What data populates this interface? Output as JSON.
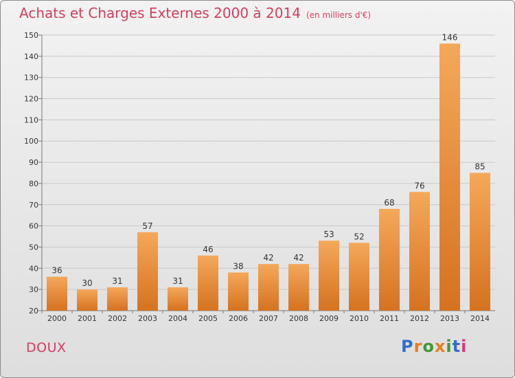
{
  "header": {
    "title": "Achats et Charges Externes 2000 à 2014",
    "unit": "(en milliers d'€)"
  },
  "footer": {
    "city": "DOUX",
    "logo_text": "Proxiti",
    "logo_colors": [
      "#2f6fc9",
      "#e87d1e",
      "#3d9b35",
      "#e87d1e",
      "#3d9b35",
      "#2f6fc9",
      "#d8357f"
    ]
  },
  "colors": {
    "title": "#d0405e",
    "bar_top": "#f5a85a",
    "bar_bottom": "#d5721f"
  },
  "chart_data": {
    "type": "bar",
    "title": "Achats et Charges Externes 2000 à 2014",
    "subtitle": "(en milliers d'€)",
    "xlabel": "",
    "ylabel": "",
    "categories": [
      "2000",
      "2001",
      "2002",
      "2003",
      "2004",
      "2005",
      "2006",
      "2007",
      "2008",
      "2009",
      "2010",
      "2011",
      "2012",
      "2013",
      "2014"
    ],
    "values": [
      36,
      30,
      31,
      57,
      31,
      46,
      38,
      42,
      42,
      53,
      52,
      68,
      76,
      146,
      85
    ],
    "ylim": [
      20,
      150
    ],
    "yticks": [
      20,
      30,
      40,
      50,
      60,
      70,
      80,
      90,
      100,
      110,
      120,
      130,
      140,
      150
    ],
    "grid": true,
    "legend": "none"
  }
}
